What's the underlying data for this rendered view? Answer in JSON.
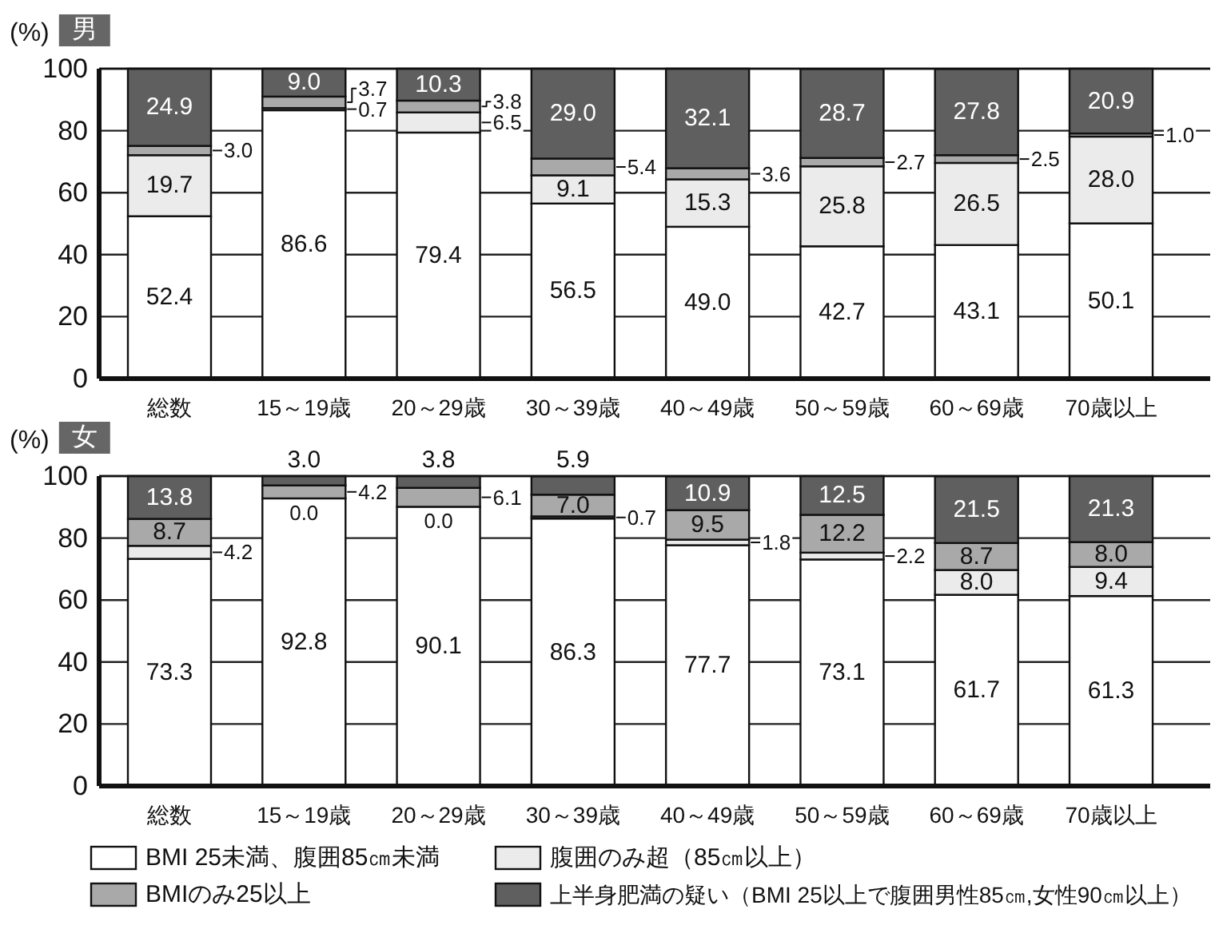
{
  "chart_data": [
    {
      "type": "bar",
      "stacked": true,
      "title": "男",
      "ylabel": "(%)",
      "categories": [
        "総数",
        "15～19歳",
        "20～29歳",
        "30～39歳",
        "40～49歳",
        "50～59歳",
        "60～69歳",
        "70歳以上"
      ],
      "series": [
        {
          "color": "#ffffff",
          "values": [
            52.4,
            86.6,
            79.4,
            56.5,
            49.0,
            42.7,
            43.1,
            50.1
          ],
          "value_labels": [
            "52.4",
            "86.6",
            "79.4",
            "56.5",
            "49.0",
            "42.7",
            "43.1",
            "50.1"
          ]
        },
        {
          "color": "#ebebeb",
          "values": [
            19.7,
            0.7,
            6.5,
            9.1,
            15.3,
            25.8,
            26.5,
            28.0
          ],
          "value_labels": [
            "19.7",
            "0.7",
            "6.5",
            "9.1",
            "15.3",
            "25.8",
            "26.5",
            "28.0"
          ]
        },
        {
          "color": "#a9a9a9",
          "values": [
            3.0,
            3.7,
            3.8,
            5.4,
            3.6,
            2.7,
            2.5,
            1.0
          ],
          "value_labels": [
            "3.0",
            "3.7",
            "3.8",
            "5.4",
            "3.6",
            "2.7",
            "2.5",
            "1.0"
          ]
        },
        {
          "color": "#5f5f5f",
          "values": [
            24.9,
            9.0,
            10.3,
            29.0,
            32.1,
            28.7,
            27.8,
            20.9
          ],
          "value_labels": [
            "24.9",
            "9.0",
            "10.3",
            "29.0",
            "32.1",
            "28.7",
            "27.8",
            "20.9"
          ]
        }
      ],
      "ylim": [
        0,
        100
      ],
      "yticks": [
        0,
        20,
        40,
        60,
        80,
        100
      ],
      "grid": "y"
    },
    {
      "type": "bar",
      "stacked": true,
      "title": "女",
      "ylabel": "(%)",
      "categories": [
        "総数",
        "15～19歳",
        "20～29歳",
        "30～39歳",
        "40～49歳",
        "50～59歳",
        "60～69歳",
        "70歳以上"
      ],
      "series": [
        {
          "name": "BMI 25未満、腹囲85㎝未満",
          "color": "#ffffff",
          "values": [
            73.3,
            92.8,
            90.1,
            86.3,
            77.7,
            73.1,
            61.7,
            61.3
          ],
          "value_labels": [
            "73.3",
            "92.8",
            "90.1",
            "86.3",
            "77.7",
            "73.1",
            "61.7",
            "61.3"
          ]
        },
        {
          "name": "腹囲のみ超（85㎝以上）",
          "color": "#ebebeb",
          "values": [
            4.2,
            0.0,
            0.0,
            0.7,
            1.8,
            2.2,
            8.0,
            9.4
          ],
          "value_labels": [
            "4.2",
            "0.0",
            "0.0",
            "0.7",
            "1.8",
            "2.2",
            "8.0",
            "9.4"
          ]
        },
        {
          "name": "BMIのみ25以上",
          "color": "#a9a9a9",
          "values": [
            8.7,
            4.2,
            6.1,
            7.0,
            9.5,
            12.2,
            8.7,
            8.0
          ],
          "value_labels": [
            "8.7",
            "4.2",
            "6.1",
            "7.0",
            "9.5",
            "12.2",
            "8.7",
            "8.0"
          ]
        },
        {
          "name": "上半身肥満の疑い（BMI 25以上で腹囲男性85㎝,女性90㎝以上）",
          "color": "#5f5f5f",
          "values": [
            13.8,
            3.0,
            3.8,
            5.9,
            10.9,
            12.5,
            21.5,
            21.3
          ],
          "value_labels": [
            "13.8",
            "3.0",
            "3.8",
            "5.9",
            "10.9",
            "12.5",
            "21.5",
            "21.3"
          ]
        }
      ],
      "ylim": [
        0,
        100
      ],
      "yticks": [
        0,
        20,
        40,
        60,
        80,
        100
      ],
      "grid": "y",
      "legend": "bottom"
    }
  ]
}
